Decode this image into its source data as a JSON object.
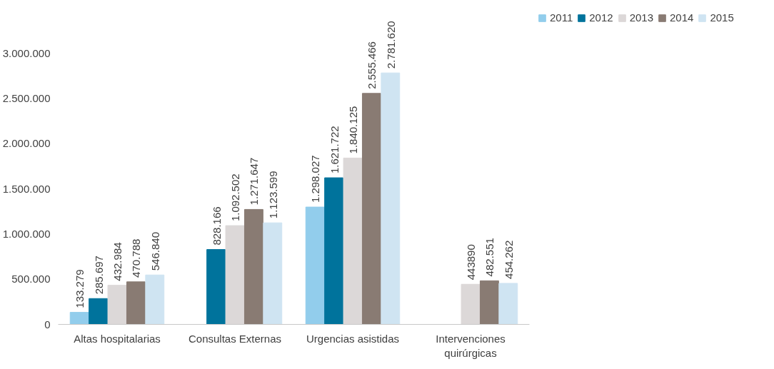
{
  "chart_data": {
    "type": "bar",
    "categories": [
      "Altas hospitalarias",
      "Consultas Externas",
      "Urgencias asistidas",
      "Intervenciones\nquirúrgicas"
    ],
    "series": [
      {
        "name": "2011",
        "color": "#92cdec",
        "values": [
          133279,
          null,
          1298027,
          null
        ],
        "value_labels": [
          "133.279",
          null,
          "1.298.027",
          null
        ]
      },
      {
        "name": "2012",
        "color": "#00739c",
        "values": [
          285697,
          828166,
          1621722,
          null
        ],
        "value_labels": [
          "285.697",
          "828.166",
          "1.621.722",
          null
        ]
      },
      {
        "name": "2013",
        "color": "#dcd8d8",
        "values": [
          432984,
          1092502,
          1840125,
          443890
        ],
        "value_labels": [
          "432.984",
          "1.092.502",
          "1.840.125",
          "443890"
        ]
      },
      {
        "name": "2014",
        "color": "#897b73",
        "values": [
          470788,
          1271647,
          2555466,
          482551
        ],
        "value_labels": [
          "470.788",
          "1.271.647",
          "2.555.466",
          "482.551"
        ]
      },
      {
        "name": "2015",
        "color": "#cfe4f2",
        "values": [
          546840,
          1123599,
          2781620,
          454262
        ],
        "value_labels": [
          "546.840",
          "1.123.599",
          "2.781.620",
          "454.262"
        ]
      }
    ],
    "ylim": [
      0,
      3000000
    ],
    "yticks": [
      {
        "value": 0,
        "label": "0"
      },
      {
        "value": 500000,
        "label": "500.000"
      },
      {
        "value": 1000000,
        "label": "1.000.000"
      },
      {
        "value": 1500000,
        "label": "1.500.000"
      },
      {
        "value": 2000000,
        "label": "2.000.000"
      },
      {
        "value": 2500000,
        "label": "2.500.000"
      },
      {
        "value": 3000000,
        "label": "3.000.000"
      }
    ],
    "grid": false,
    "legend": "right"
  }
}
